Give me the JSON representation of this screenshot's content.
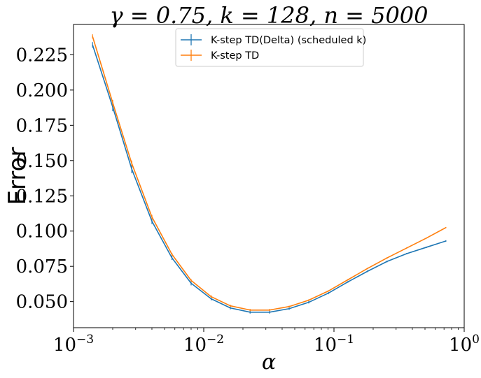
{
  "chart_data": {
    "type": "line",
    "title": "γ = 0.75, k = 128, n = 5000",
    "xlabel": "α",
    "ylabel": "Error",
    "xscale": "log",
    "xlim": [
      0.001,
      1
    ],
    "ylim": [
      0.0315,
      0.2465
    ],
    "grid": false,
    "legend_position": "top-center",
    "x_ticks": [
      {
        "value": 0.001,
        "base": "10",
        "exp": "−3"
      },
      {
        "value": 0.01,
        "base": "10",
        "exp": "−2"
      },
      {
        "value": 0.1,
        "base": "10",
        "exp": "−1"
      },
      {
        "value": 1,
        "base": "10",
        "exp": "0"
      }
    ],
    "y_ticks": [
      0.05,
      0.075,
      0.1,
      0.125,
      0.15,
      0.175,
      0.2,
      0.225
    ],
    "y_tick_labels": [
      "0.050",
      "0.075",
      "0.100",
      "0.125",
      "0.150",
      "0.175",
      "0.200",
      "0.225"
    ],
    "x": [
      0.0014,
      0.002,
      0.0028,
      0.004,
      0.0057,
      0.008,
      0.0114,
      0.016,
      0.0227,
      0.032,
      0.0453,
      0.064,
      0.0905,
      0.128,
      0.181,
      0.256,
      0.362,
      0.512,
      0.724
    ],
    "series": [
      {
        "name": "K-step TD(Delta) (scheduled k)",
        "color": "#1f77b4",
        "values": [
          0.232,
          0.188,
          0.144,
          0.107,
          0.081,
          0.063,
          0.052,
          0.0455,
          0.0425,
          0.0425,
          0.045,
          0.0495,
          0.056,
          0.064,
          0.0715,
          0.0785,
          0.084,
          0.0885,
          0.093
        ],
        "errors": [
          0.002,
          0.003,
          0.003,
          0.002,
          0.0015,
          0.0015,
          0.0012,
          0.001,
          0.001,
          0.001,
          0.0008,
          0.0008,
          0.0008,
          0.0006,
          0.0006,
          0.0006,
          0.0005,
          0.0005,
          0.0005
        ]
      },
      {
        "name": "K-step TD",
        "color": "#ff7f0e",
        "values": [
          0.238,
          0.191,
          0.148,
          0.11,
          0.0835,
          0.065,
          0.0535,
          0.047,
          0.044,
          0.044,
          0.0465,
          0.051,
          0.0575,
          0.0655,
          0.0735,
          0.081,
          0.088,
          0.095,
          0.1025
        ],
        "errors": [
          0.0015,
          0.002,
          0.002,
          0.0015,
          0.001,
          0.001,
          0.001,
          0.0008,
          0.0008,
          0.0008,
          0.0006,
          0.0006,
          0.0005,
          0.0005,
          0.0005,
          0.0005,
          0.0004,
          0.0004,
          0.0004
        ]
      }
    ]
  }
}
